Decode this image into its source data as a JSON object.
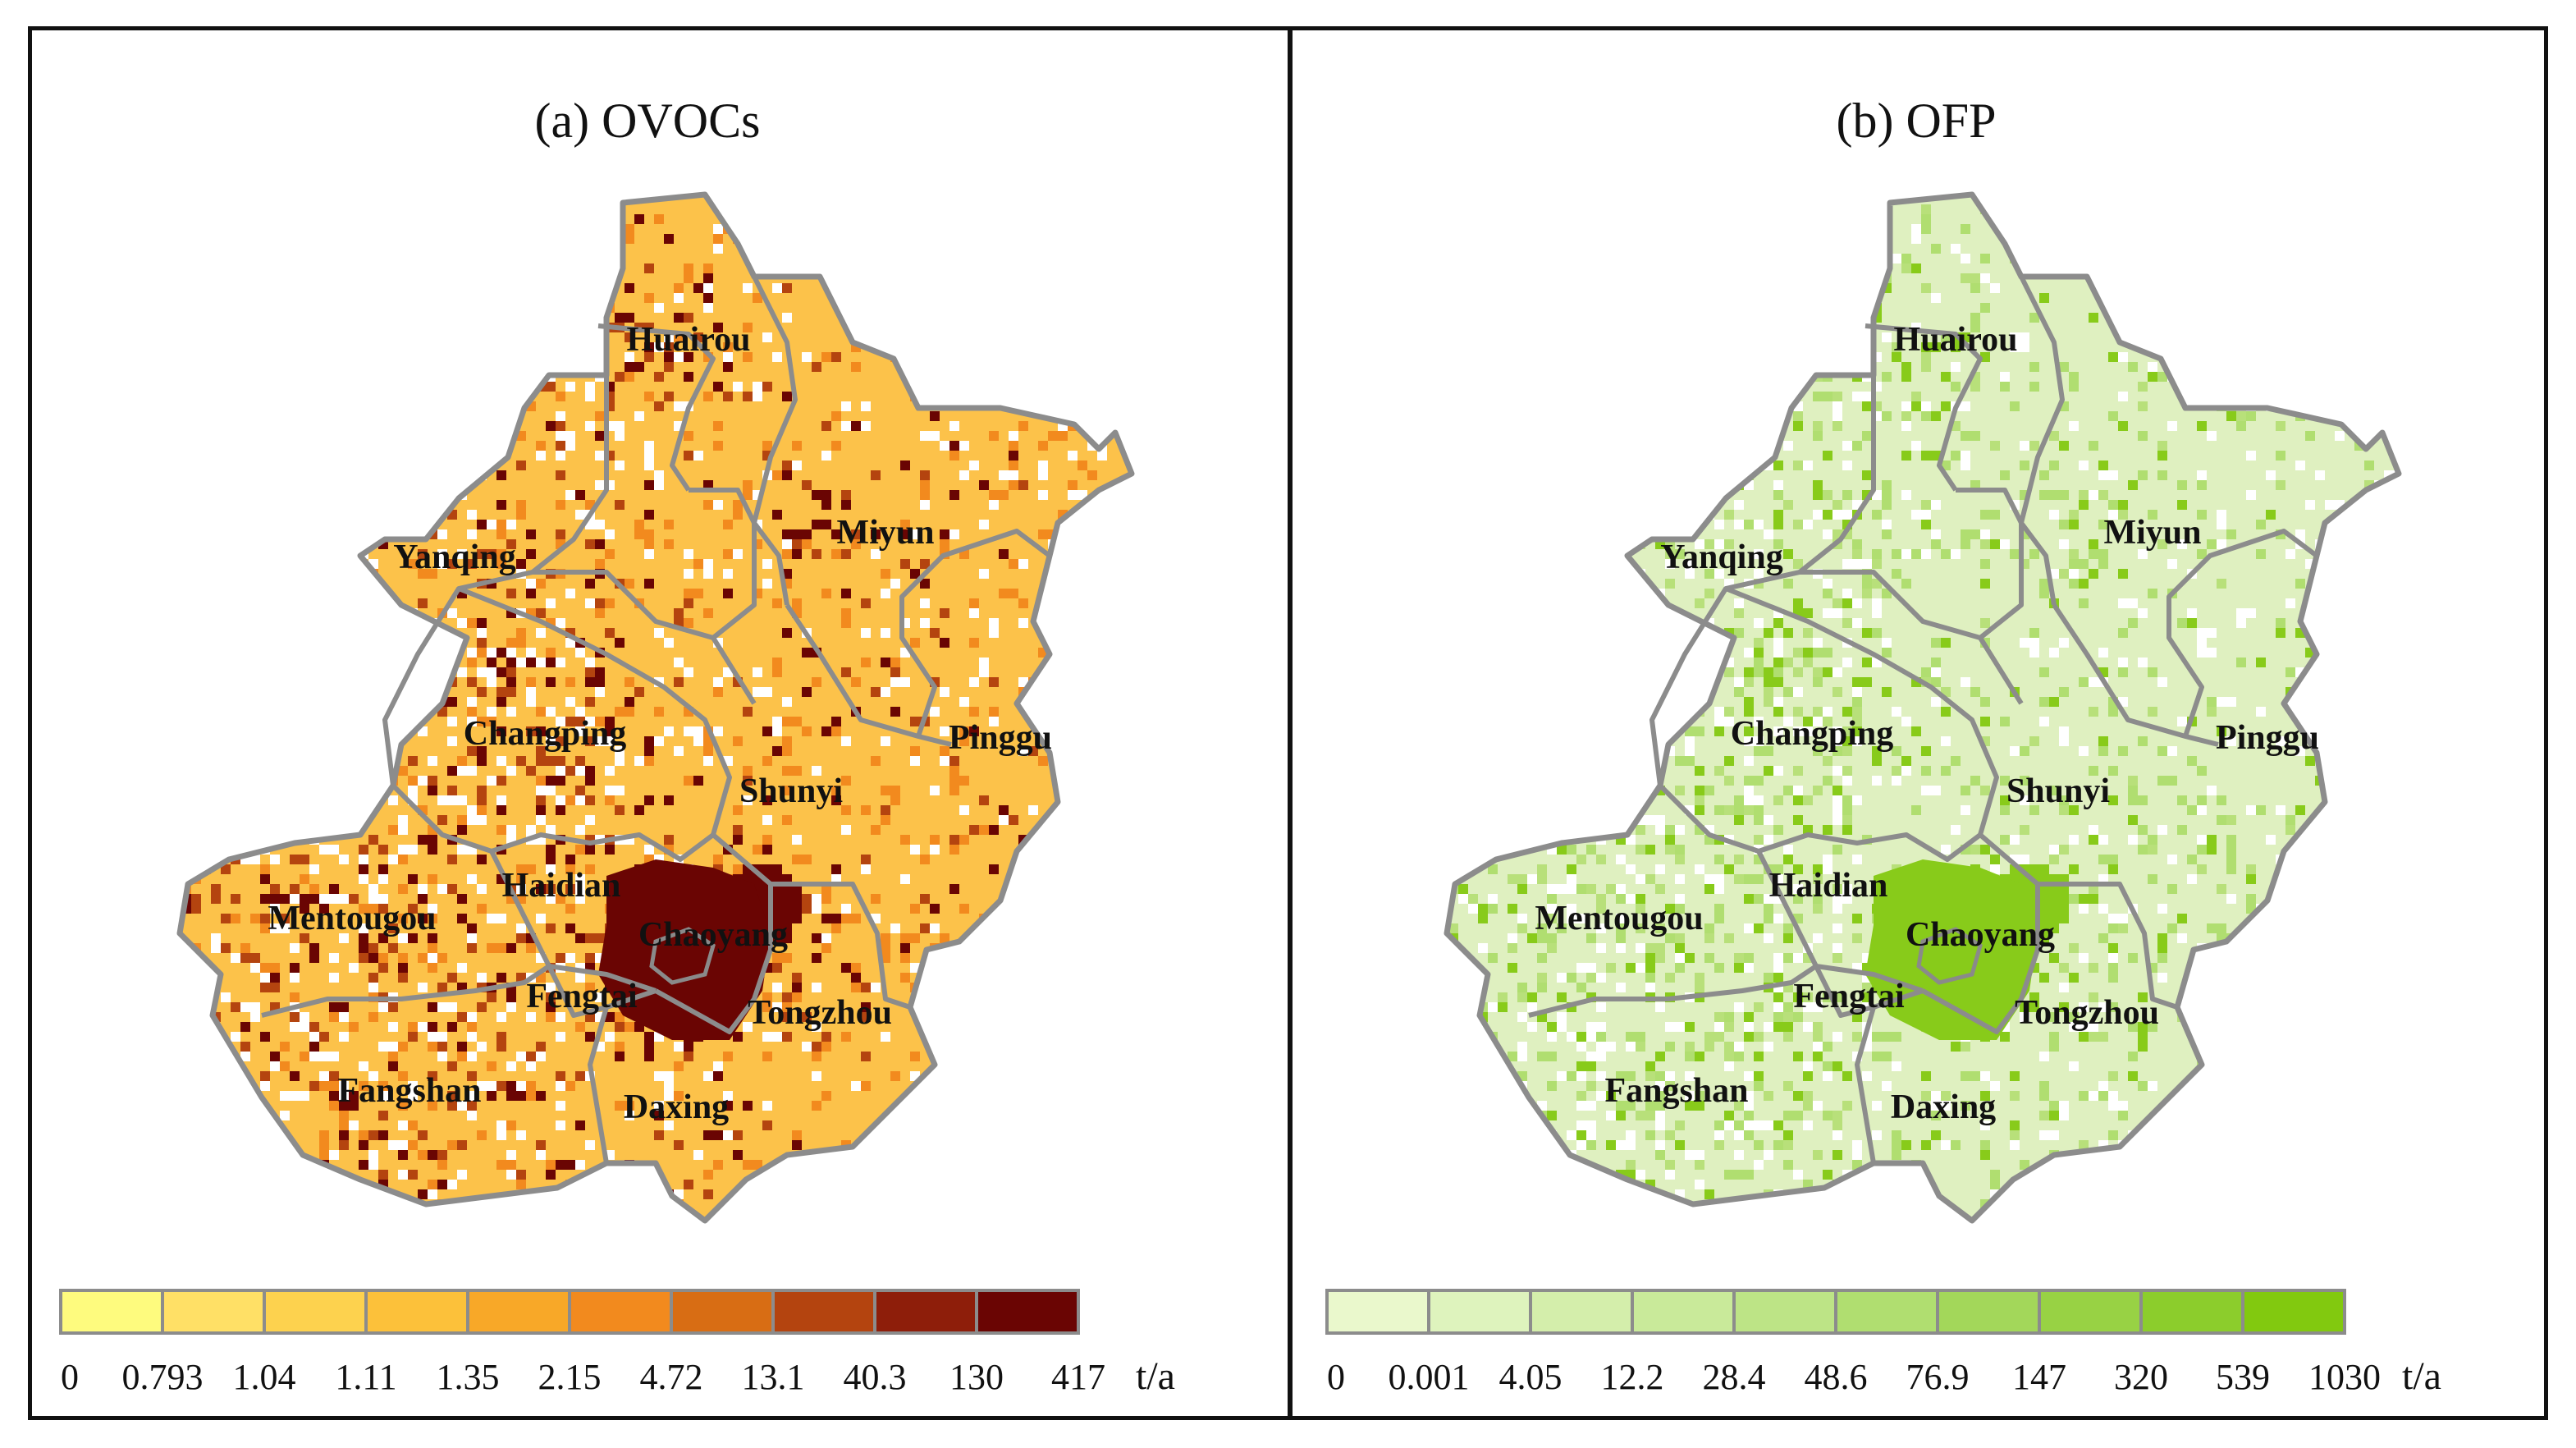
{
  "panels": [
    {
      "id": "a",
      "title": "(a) OVOCs",
      "unit": "t/a",
      "colors": [
        "#fefb7e",
        "#ffe066",
        "#fdd24e",
        "#fcc13a",
        "#f8a828",
        "#f28a1e",
        "#d86d14",
        "#b4440f",
        "#8e1e0a",
        "#6a0503"
      ],
      "ticks": [
        "0",
        "0.793",
        "1.04",
        "1.11",
        "1.35",
        "2.15",
        "4.72",
        "13.1",
        "40.3",
        "130",
        "417"
      ],
      "base_color": "#fcc24a",
      "hot_color": "#6a0503",
      "mid_color": "#b4440f"
    },
    {
      "id": "b",
      "title": "(b) OFP",
      "unit": "t/a",
      "colors": [
        "#eaf8cc",
        "#def3bd",
        "#d4eeab",
        "#c9ea9a",
        "#bde486",
        "#b0de70",
        "#a3d75a",
        "#98d244",
        "#8ccd2c",
        "#82c90f"
      ],
      "ticks": [
        "0",
        "0.001",
        "4.05",
        "12.2",
        "28.4",
        "48.6",
        "76.9",
        "147",
        "320",
        "539",
        "1030"
      ],
      "base_color": "#dff0c0",
      "hot_color": "#88cb1a",
      "mid_color": "#b8e07a"
    }
  ],
  "districts": [
    {
      "key": "huairou",
      "name": "Huairou"
    },
    {
      "key": "miyun",
      "name": "Miyun"
    },
    {
      "key": "yanqing",
      "name": "Yanqing"
    },
    {
      "key": "changping",
      "name": "Changping"
    },
    {
      "key": "pinggu",
      "name": "Pinggu"
    },
    {
      "key": "shunyi",
      "name": "Shunyi"
    },
    {
      "key": "haidian",
      "name": "Haidian"
    },
    {
      "key": "mentougou",
      "name": "Mentougou"
    },
    {
      "key": "chaoyang",
      "name": "Chaoyang"
    },
    {
      "key": "fengtai",
      "name": "Fengtai"
    },
    {
      "key": "tongzhou",
      "name": "Tongzhou"
    },
    {
      "key": "fangshan",
      "name": "Fangshan"
    },
    {
      "key": "daxing",
      "name": "Daxing"
    }
  ]
}
